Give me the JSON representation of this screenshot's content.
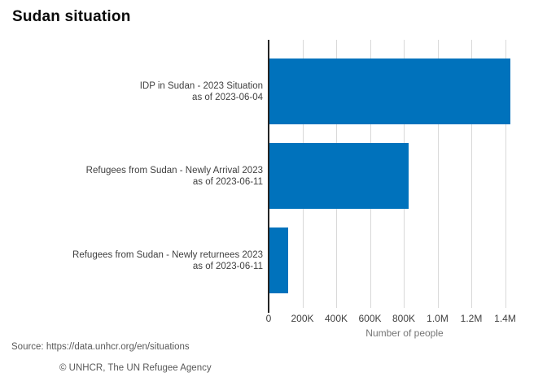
{
  "title": "Sudan situation",
  "chart_data": {
    "type": "bar",
    "orientation": "horizontal",
    "title": "Sudan situation",
    "xlabel": "Number of people",
    "xlim": [
      0,
      1610000
    ],
    "grid": true,
    "legend": false,
    "bar_color": "#0072BC",
    "categories": [
      "IDP in Sudan - 2023 Situation",
      "Refugees from Sudan - Newly Arrival 2023",
      "Refugees from Sudan - Newly returnees 2023"
    ],
    "category_sublabels": [
      "as of 2023-06-04",
      "as of 2023-06-11",
      "as of 2023-06-11"
    ],
    "values": [
      1425000,
      825000,
      113000
    ],
    "x_ticks": [
      {
        "label": "0",
        "value": 0
      },
      {
        "label": "200K",
        "value": 200000
      },
      {
        "label": "400K",
        "value": 400000
      },
      {
        "label": "600K",
        "value": 600000
      },
      {
        "label": "800K",
        "value": 800000
      },
      {
        "label": "1.0M",
        "value": 1000000
      },
      {
        "label": "1.2M",
        "value": 1200000
      },
      {
        "label": "1.4M",
        "value": 1400000
      }
    ]
  },
  "colors": {
    "bar": "#0072BC",
    "grid": "#d9d9d9",
    "axis_line": "#252525",
    "tick_text": "#404040",
    "category_text": "#404040",
    "axis_label_text": "#757575",
    "footer_text": "#595959",
    "title_text": "#0a0a0a",
    "background": "#ffffff"
  },
  "footer": {
    "source": "Source: https://data.unhcr.org/en/situations",
    "copyright": "© UNHCR, The UN Refugee Agency"
  }
}
